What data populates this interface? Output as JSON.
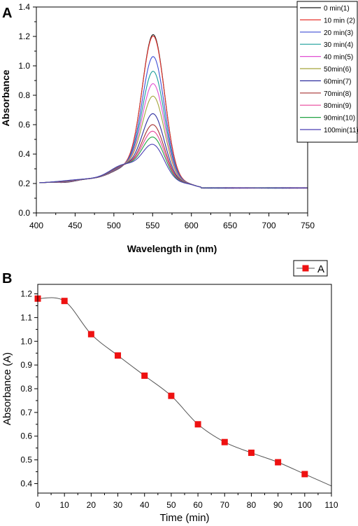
{
  "chart_data": [
    {
      "panel": "A",
      "type": "line",
      "xlabel": "Wavelength in (nm)",
      "ylabel": "Absorbance",
      "xlim": [
        400,
        750
      ],
      "ylim": [
        0.0,
        1.4
      ],
      "xticks": [
        400,
        450,
        500,
        550,
        600,
        650,
        700,
        750
      ],
      "yticks": [
        "0.0",
        "0.2",
        "0.4",
        "0.6",
        "0.8",
        "1.0",
        "1.2",
        "1.4"
      ],
      "legend_position": "top-right",
      "series": [
        {
          "name": "0 min(1)",
          "color": "#1a1a1a",
          "peak": 1.19
        },
        {
          "name": "10 min (2)",
          "color": "#e8352f",
          "peak": 1.18
        },
        {
          "name": "20 min(3)",
          "color": "#3f4fd6",
          "peak": 1.04
        },
        {
          "name": "30 min(4)",
          "color": "#1a9e9a",
          "peak": 0.94
        },
        {
          "name": "40 min(5)",
          "color": "#e04fd2",
          "peak": 0.855
        },
        {
          "name": "50min(6)",
          "color": "#a3a33a",
          "peak": 0.77
        },
        {
          "name": "60min(7)",
          "color": "#2d2d9e",
          "peak": 0.65
        },
        {
          "name": "70min(8)",
          "color": "#a53030",
          "peak": 0.575
        },
        {
          "name": "80min(9)",
          "color": "#e8459a",
          "peak": 0.53
        },
        {
          "name": "90min(10)",
          "color": "#22a344",
          "peak": 0.49
        },
        {
          "name": "100min(11)",
          "color": "#4a3fb5",
          "peak": 0.44
        }
      ]
    },
    {
      "panel": "B",
      "type": "line",
      "xlabel": "Time (min)",
      "ylabel": "Absorbance (A)",
      "xlim": [
        0,
        110
      ],
      "ylim": [
        0.36,
        1.24
      ],
      "xticks": [
        0,
        10,
        20,
        30,
        40,
        50,
        60,
        70,
        80,
        90,
        100,
        110
      ],
      "yticks": [
        "0.4",
        "0.5",
        "0.6",
        "0.7",
        "0.8",
        "0.9",
        "1.0",
        "1.1",
        "1.2"
      ],
      "legend_position": "top-right",
      "series": [
        {
          "name": "A",
          "color": "#ee1111",
          "line_color": "#555555",
          "x": [
            0,
            10,
            20,
            30,
            40,
            50,
            60,
            70,
            80,
            90,
            100
          ],
          "y": [
            1.18,
            1.17,
            1.03,
            0.94,
            0.855,
            0.77,
            0.65,
            0.575,
            0.53,
            0.49,
            0.44
          ],
          "trend_end": 0.39
        }
      ]
    }
  ]
}
